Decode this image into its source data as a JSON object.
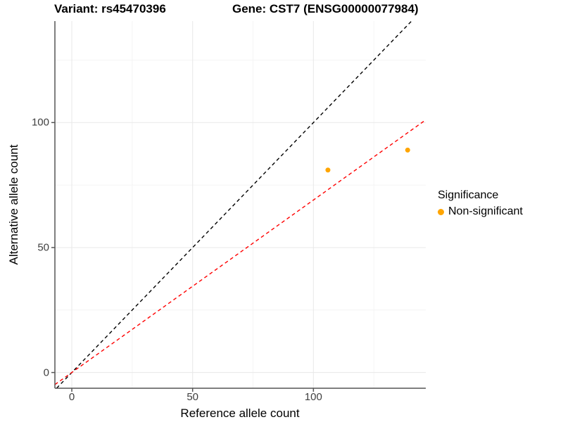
{
  "titles": {
    "variant": "Variant: rs45470396",
    "gene": "Gene: CST7 (ENSG00000077984)"
  },
  "legend": {
    "title": "Significance",
    "items": [
      {
        "label": "Non-significant",
        "color": "#FFA500"
      }
    ]
  },
  "chart_data": {
    "type": "scatter",
    "title": "Variant: rs45470396 | Gene: CST7 (ENSG00000077984)",
    "xlabel": "Reference allele count",
    "ylabel": "Alternative allele count",
    "xlim": [
      -7,
      146.5
    ],
    "ylim": [
      -6.3,
      140.6
    ],
    "x_ticks": [
      0,
      50,
      100
    ],
    "y_ticks": [
      0,
      50,
      100
    ],
    "x_minor_ticks": [
      25,
      75,
      125
    ],
    "y_minor_ticks": [
      25,
      75,
      125
    ],
    "grid": "major and minor gridlines, white panel, axis lines left and bottom only",
    "legend_position": "right",
    "series": [
      {
        "name": "Non-significant",
        "color": "#FFA500",
        "points": [
          [
            106,
            81
          ],
          [
            139,
            89
          ]
        ]
      }
    ],
    "lines": [
      {
        "name": "identity",
        "style": "dashed",
        "color": "#000000",
        "slope": 1,
        "intercept": 0
      },
      {
        "name": "ratio-fit",
        "style": "dashed",
        "color": "#FF0000",
        "slope": 0.69,
        "intercept": 0
      }
    ],
    "colors": {
      "grid_major": "#e8e8e8",
      "grid_minor": "#f4f4f4",
      "axis": "#555555",
      "point": "#FFA500"
    }
  }
}
